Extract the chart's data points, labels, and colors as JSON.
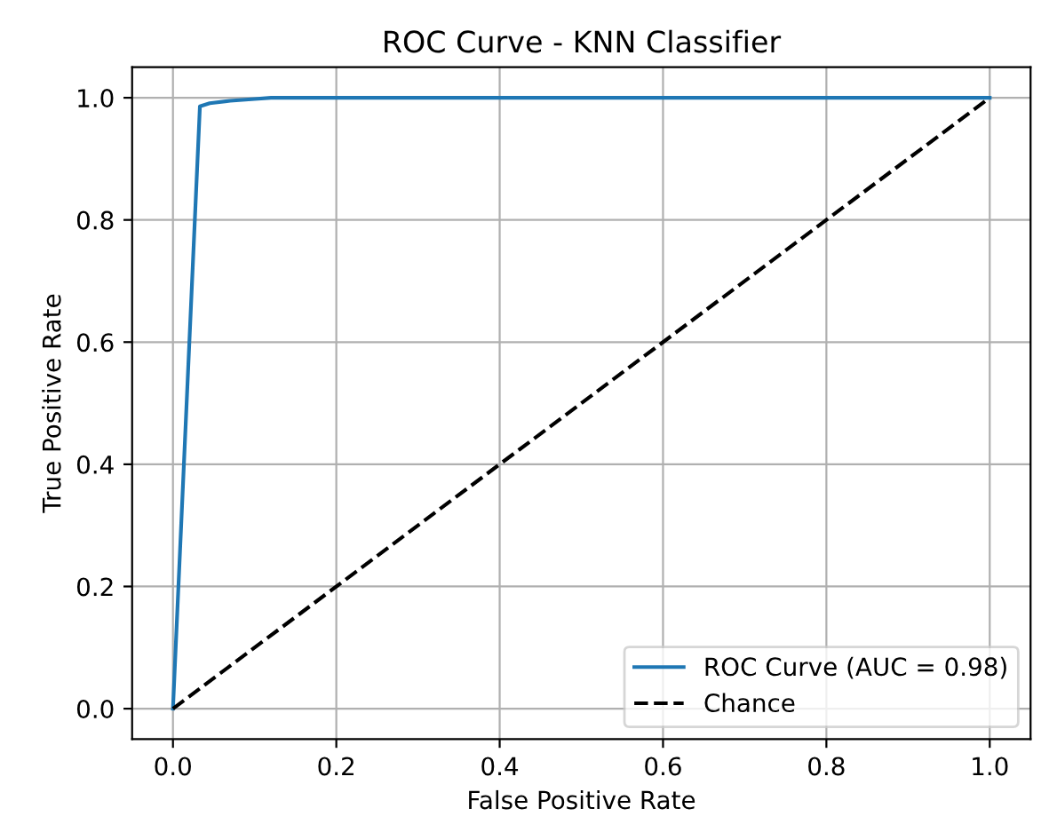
{
  "chart_data": {
    "type": "line",
    "title": "ROC Curve - KNN Classifier",
    "xlabel": "False Positive Rate",
    "ylabel": "True Positive Rate",
    "series": [
      {
        "name": "ROC Curve (AUC = 0.98)",
        "color": "#1f77b4",
        "x": [
          0,
          0.033,
          0.045,
          0.07,
          0.1,
          0.12,
          1
        ],
        "values": [
          0,
          0.986,
          0.991,
          0.995,
          0.998,
          1.0,
          1.0
        ],
        "line_style": "solid"
      },
      {
        "name": "Chance",
        "color": "#000000",
        "x": [
          0,
          1
        ],
        "values": [
          0,
          1
        ],
        "line_style": "dashed"
      }
    ],
    "xlim": [
      -0.05,
      1.05
    ],
    "ylim": [
      -0.05,
      1.05
    ],
    "xticks": [
      {
        "value": 0,
        "label": "0.0"
      },
      0.2,
      0.4,
      0.6,
      0.8,
      {
        "value": 1,
        "label": "1.0"
      }
    ],
    "yticks": [
      {
        "value": 0,
        "label": "0.0"
      },
      0.2,
      0.4,
      0.6,
      0.8,
      {
        "value": 1,
        "label": "1.0"
      }
    ],
    "grid": true,
    "legend": "bottom right"
  }
}
